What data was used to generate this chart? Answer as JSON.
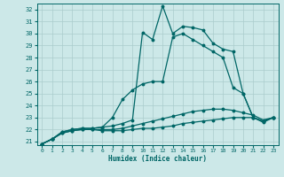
{
  "xlabel": "Humidex (Indice chaleur)",
  "background_color": "#cce8e8",
  "grid_color": "#aacccc",
  "line_color": "#006666",
  "xlim_min": -0.5,
  "xlim_max": 23.5,
  "ylim_min": 20.7,
  "ylim_max": 32.5,
  "xticks": [
    0,
    1,
    2,
    3,
    4,
    5,
    6,
    7,
    8,
    9,
    10,
    11,
    12,
    13,
    14,
    15,
    16,
    17,
    18,
    19,
    20,
    21,
    22,
    23
  ],
  "yticks": [
    21,
    22,
    23,
    24,
    25,
    26,
    27,
    28,
    29,
    30,
    31,
    32
  ],
  "series": [
    {
      "name": "bottom_flat",
      "x": [
        0,
        1,
        2,
        3,
        4,
        5,
        6,
        7,
        8,
        9,
        10,
        11,
        12,
        13,
        14,
        15,
        16,
        17,
        18,
        19,
        20,
        21,
        22,
        23
      ],
      "y": [
        20.8,
        21.2,
        21.7,
        21.9,
        22.0,
        22.0,
        21.9,
        21.9,
        21.9,
        22.0,
        22.1,
        22.1,
        22.2,
        22.3,
        22.5,
        22.6,
        22.7,
        22.8,
        22.9,
        23.0,
        23.0,
        23.0,
        22.7,
        23.0
      ]
    },
    {
      "name": "second_flat",
      "x": [
        0,
        1,
        2,
        3,
        4,
        5,
        6,
        7,
        8,
        9,
        10,
        11,
        12,
        13,
        14,
        15,
        16,
        17,
        18,
        19,
        20,
        21,
        22,
        23
      ],
      "y": [
        20.8,
        21.2,
        21.7,
        21.9,
        22.0,
        22.0,
        22.0,
        22.0,
        22.1,
        22.3,
        22.5,
        22.7,
        22.9,
        23.1,
        23.3,
        23.5,
        23.6,
        23.7,
        23.7,
        23.6,
        23.4,
        23.2,
        22.8,
        23.0
      ]
    },
    {
      "name": "third_curve",
      "x": [
        0,
        1,
        2,
        3,
        4,
        5,
        6,
        7,
        8,
        9,
        10,
        11,
        12,
        13,
        14,
        15,
        16,
        17,
        18,
        19,
        20,
        21,
        22,
        23
      ],
      "y": [
        20.8,
        21.2,
        21.8,
        22.0,
        22.1,
        22.1,
        22.2,
        23.0,
        24.5,
        25.3,
        25.8,
        26.0,
        26.0,
        29.7,
        30.0,
        29.5,
        29.0,
        28.5,
        28.0,
        25.5,
        25.0,
        23.0,
        22.7,
        23.0
      ]
    },
    {
      "name": "top_spike",
      "x": [
        0,
        1,
        2,
        3,
        4,
        5,
        6,
        7,
        8,
        9,
        10,
        11,
        12,
        13,
        14,
        15,
        16,
        17,
        18,
        19,
        20,
        21,
        22,
        23
      ],
      "y": [
        20.8,
        21.2,
        21.8,
        22.0,
        22.1,
        22.1,
        22.2,
        22.3,
        22.5,
        22.8,
        30.1,
        29.5,
        32.3,
        30.0,
        30.6,
        30.5,
        30.3,
        29.2,
        28.7,
        28.5,
        25.0,
        23.0,
        22.6,
        23.0
      ]
    }
  ],
  "linewidth": 0.9,
  "markersize": 1.8
}
